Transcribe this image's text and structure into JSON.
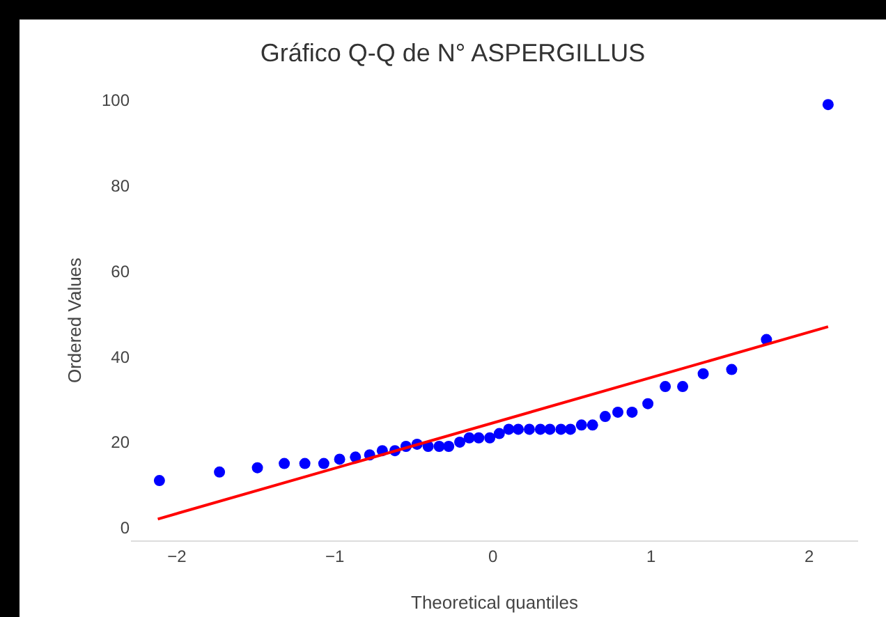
{
  "chart_data": {
    "type": "scatter",
    "title": "Gráfico Q-Q de N° ASPERGILLUS",
    "xlabel": "Theoretical quantiles",
    "ylabel": "Ordered Values",
    "marker": "circle",
    "grid": false,
    "xlim": [
      -2.29,
      2.31
    ],
    "xticks": [
      {
        "value": -2,
        "label": "−2"
      },
      {
        "value": -1,
        "label": "−1"
      },
      0,
      1,
      2
    ],
    "ylim": [
      -3,
      100
    ],
    "yticks": [
      0,
      20,
      40,
      60,
      80,
      100
    ],
    "series": [
      {
        "color": "#0000ff",
        "x": [
          -2.11,
          -1.73,
          -1.49,
          -1.32,
          -1.19,
          -1.07,
          -0.97,
          -0.87,
          -0.78,
          -0.7,
          -0.62,
          -0.55,
          -0.48,
          -0.41,
          -0.34,
          -0.28,
          -0.21,
          -0.15,
          -0.09,
          -0.02,
          0.04,
          0.1,
          0.16,
          0.23,
          0.3,
          0.36,
          0.43,
          0.49,
          0.56,
          0.63,
          0.71,
          0.79,
          0.88,
          0.98,
          1.09,
          1.2,
          1.33,
          1.51,
          1.73,
          2.12
        ],
        "values": [
          11,
          13,
          14,
          15,
          15,
          15,
          16,
          16.5,
          17,
          18,
          18,
          19,
          19.5,
          19,
          19,
          19,
          20,
          21,
          21,
          21,
          22,
          23,
          23,
          23,
          23,
          23,
          23,
          23,
          24,
          24,
          26,
          27,
          27,
          29,
          33,
          33,
          36,
          37,
          44,
          99
        ]
      },
      {
        "type": "line",
        "color": "#ff0000",
        "marker": "none",
        "line_style": "solid",
        "x": [
          -2.12,
          2.12
        ],
        "values": [
          2,
          47
        ]
      }
    ]
  }
}
